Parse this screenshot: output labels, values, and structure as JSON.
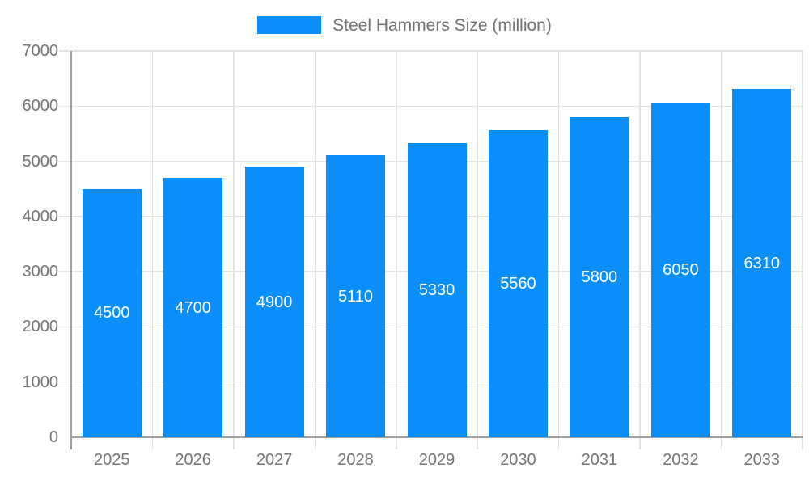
{
  "chart_data": {
    "type": "bar",
    "title": "Steel Hammers Size (million)",
    "series_name": "Steel Hammers Size (million)",
    "categories": [
      "2025",
      "2026",
      "2027",
      "2028",
      "2029",
      "2030",
      "2031",
      "2032",
      "2033"
    ],
    "values": [
      4500,
      4700,
      4900,
      5110,
      5330,
      5560,
      5800,
      6050,
      6310
    ],
    "value_labels": [
      "4500",
      "4700",
      "4900",
      "5110",
      "5330",
      "5560",
      "5800",
      "6050",
      "6310"
    ],
    "xlabel": "",
    "ylabel": "",
    "ylim": [
      0,
      7000
    ],
    "y_ticks": [
      "0",
      "1000",
      "2000",
      "3000",
      "4000",
      "5000",
      "6000",
      "7000"
    ],
    "grid": "on",
    "legend_position": "top-center",
    "value_label_position": "inside-center",
    "colors": {
      "bar": "#0a8ef9",
      "grid": "#e3e3e3",
      "axis": "#9e9e9e",
      "tick_text": "#757575",
      "legend_text": "#737373",
      "value_text": "#ffffff",
      "background": "#ffffff"
    }
  }
}
